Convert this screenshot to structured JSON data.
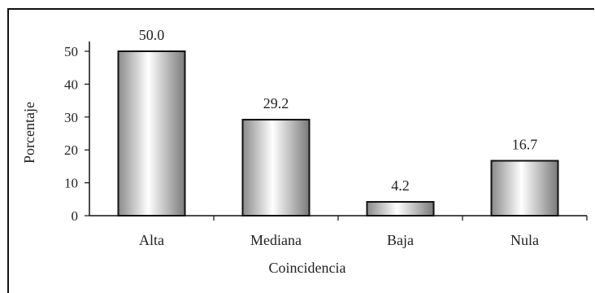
{
  "chart_data": {
    "type": "bar",
    "categories": [
      "Alta",
      "Mediana",
      "Baja",
      "Nula"
    ],
    "values": [
      50.0,
      29.2,
      4.2,
      16.7
    ],
    "data_labels": [
      "50.0",
      "29.2",
      "4.2",
      "16.7"
    ],
    "ylim": [
      0,
      50
    ],
    "yticks": [
      "0",
      "10",
      "20",
      "30",
      "40",
      "50"
    ],
    "xlabel": "Coincidencia",
    "ylabel": "Porcentaje",
    "grid": false,
    "legend": "none",
    "colors": {
      "bar_edge": "#111111",
      "bar_dark": "#8a8a8a",
      "bar_light": "#ffffff",
      "axis": "#111111"
    }
  }
}
